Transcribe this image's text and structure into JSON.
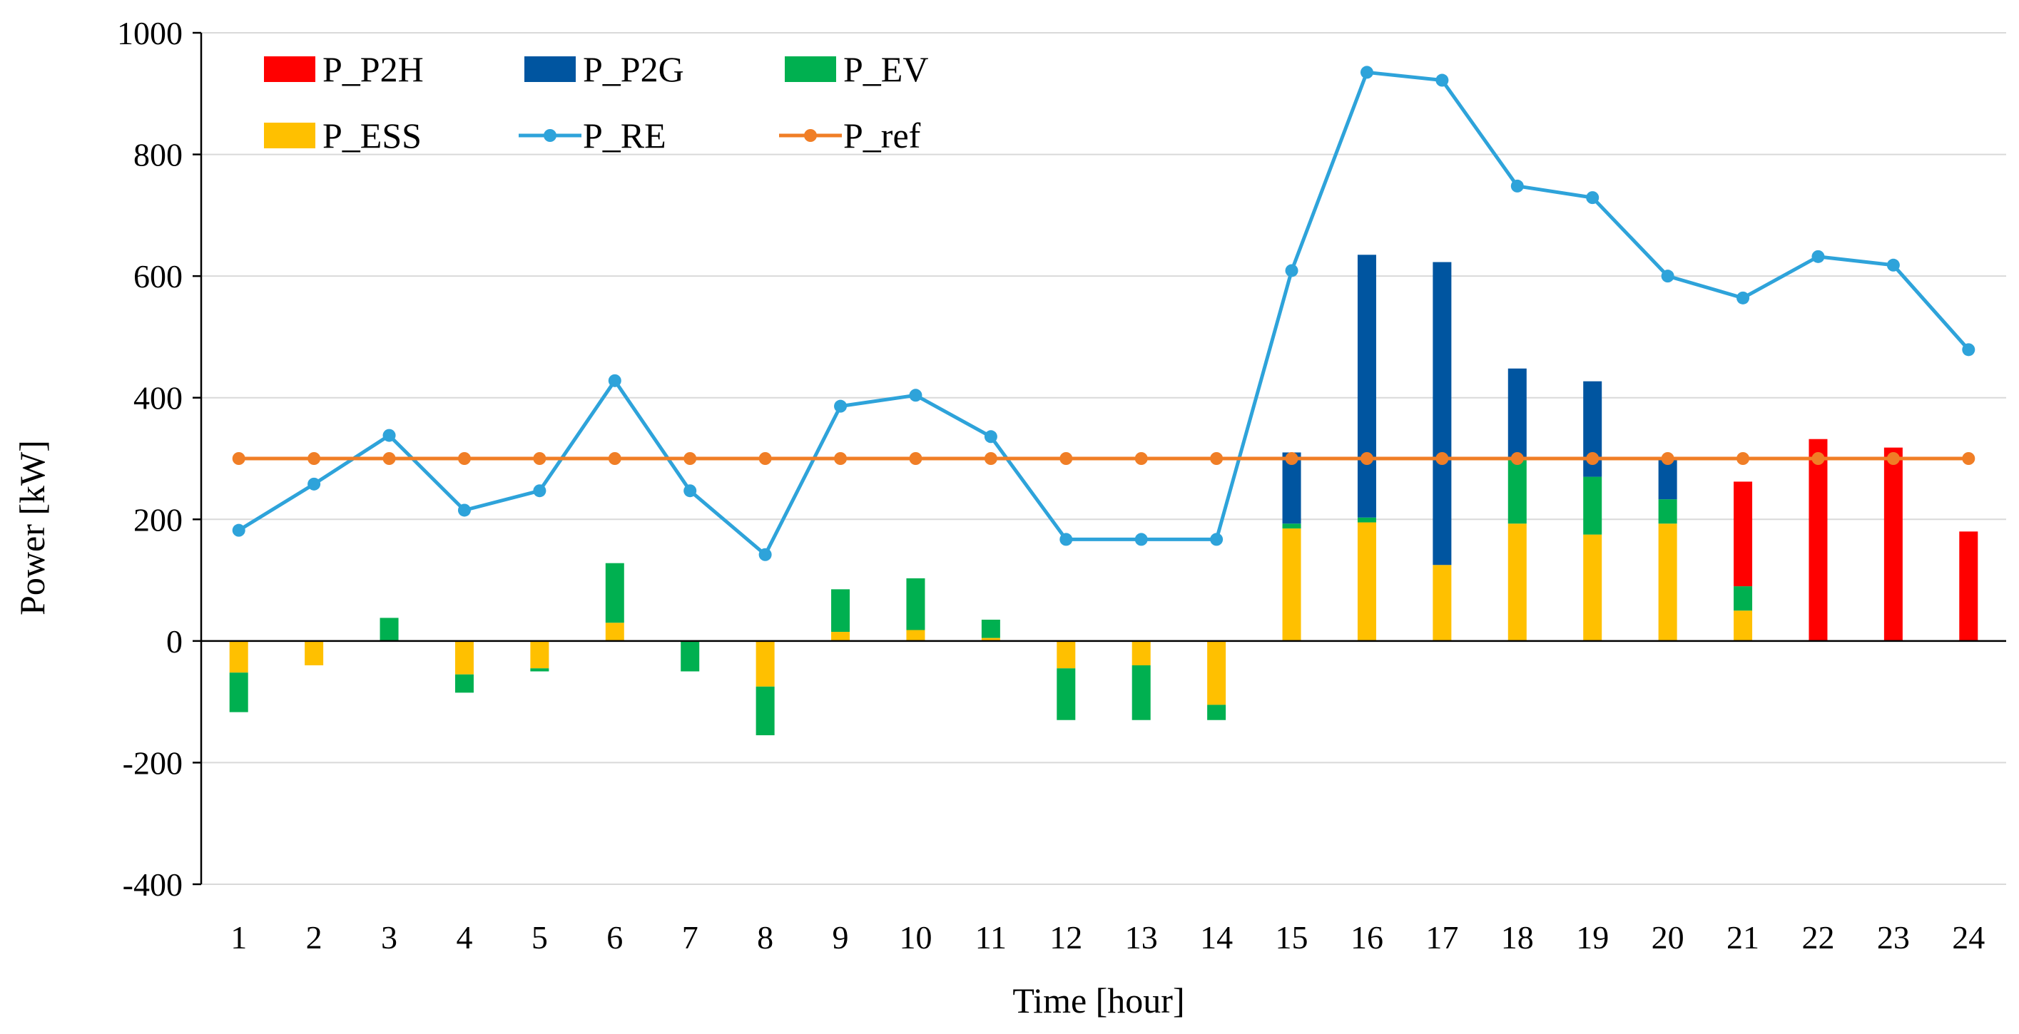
{
  "chart_data": {
    "type": "bar",
    "stacked": true,
    "title": "",
    "xlabel": "Time [hour]",
    "ylabel": "Power [kW]",
    "ylim": [
      -400,
      1000
    ],
    "yticks": [
      -400,
      -200,
      0,
      200,
      400,
      600,
      800,
      1000
    ],
    "grid": true,
    "legend_position": "top-left",
    "categories": [
      "1",
      "2",
      "3",
      "4",
      "5",
      "6",
      "7",
      "8",
      "9",
      "10",
      "11",
      "12",
      "13",
      "14",
      "15",
      "16",
      "17",
      "18",
      "19",
      "20",
      "21",
      "22",
      "23",
      "24"
    ],
    "bar_series": [
      {
        "name": "P_ESS",
        "color": "#FFC000",
        "values": [
          -52,
          -40,
          0,
          -55,
          -45,
          30,
          0,
          -75,
          15,
          18,
          5,
          -45,
          -40,
          -105,
          185,
          195,
          125,
          193,
          175,
          193,
          50,
          0,
          0,
          0
        ]
      },
      {
        "name": "P_EV",
        "color": "#00B050",
        "values": [
          -65,
          0,
          38,
          -30,
          -5,
          98,
          -50,
          -80,
          70,
          85,
          30,
          -85,
          -90,
          -25,
          8,
          8,
          0,
          107,
          95,
          40,
          40,
          0,
          0,
          0
        ]
      },
      {
        "name": "P_P2G",
        "color": "#0055A0",
        "values": [
          0,
          0,
          0,
          0,
          0,
          0,
          0,
          0,
          0,
          0,
          0,
          0,
          0,
          0,
          117,
          432,
          498,
          148,
          157,
          67,
          0,
          0,
          0,
          0
        ]
      },
      {
        "name": "P_P2H",
        "color": "#FF0000",
        "values": [
          0,
          0,
          0,
          0,
          0,
          0,
          0,
          0,
          0,
          0,
          0,
          0,
          0,
          0,
          0,
          0,
          0,
          0,
          0,
          0,
          172,
          332,
          318,
          180
        ]
      }
    ],
    "line_series": [
      {
        "name": "P_RE",
        "color": "#2EA3DA",
        "values": [
          182,
          258,
          338,
          215,
          247,
          428,
          247,
          142,
          386,
          404,
          336,
          167,
          167,
          167,
          609,
          935,
          922,
          748,
          729,
          600,
          564,
          632,
          618,
          479
        ]
      },
      {
        "name": "P_ref",
        "color": "#F07E26",
        "values": [
          300,
          300,
          300,
          300,
          300,
          300,
          300,
          300,
          300,
          300,
          300,
          300,
          300,
          300,
          300,
          300,
          300,
          300,
          300,
          300,
          300,
          300,
          300,
          300
        ]
      }
    ],
    "legend": [
      {
        "name": "P_P2H",
        "kind": "bar",
        "color": "#FF0000"
      },
      {
        "name": "P_P2G",
        "kind": "bar",
        "color": "#0055A0"
      },
      {
        "name": "P_EV",
        "kind": "bar",
        "color": "#00B050"
      },
      {
        "name": "P_ESS",
        "kind": "bar",
        "color": "#FFC000"
      },
      {
        "name": "P_RE",
        "kind": "line",
        "color": "#2EA3DA"
      },
      {
        "name": "P_ref",
        "kind": "line",
        "color": "#F07E26"
      }
    ]
  }
}
